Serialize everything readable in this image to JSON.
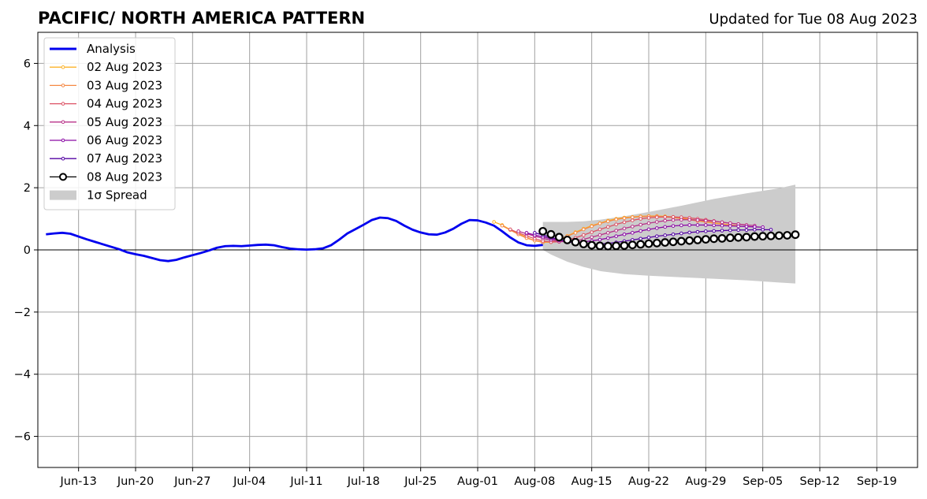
{
  "chart_data": {
    "type": "line",
    "title": "PACIFIC/ NORTH AMERICA PATTERN",
    "subtitle": "Updated for Tue 08 Aug 2023",
    "xlabel": "",
    "ylabel": "",
    "xlim": [
      "2023-06-08",
      "2023-09-24"
    ],
    "ylim": [
      -7,
      7
    ],
    "grid": true,
    "legend_position": "top-left",
    "x_ticks": [
      "2023-06-13",
      "2023-06-20",
      "2023-06-27",
      "2023-07-04",
      "2023-07-11",
      "2023-07-18",
      "2023-07-25",
      "2023-08-01",
      "2023-08-08",
      "2023-08-15",
      "2023-08-22",
      "2023-08-29",
      "2023-09-05",
      "2023-09-12",
      "2023-09-19"
    ],
    "x_tick_labels": [
      "Jun-13",
      "Jun-20",
      "Jun-27",
      "Jul-04",
      "Jul-11",
      "Jul-18",
      "Jul-25",
      "Aug-01",
      "Aug-08",
      "Aug-15",
      "Aug-22",
      "Aug-29",
      "Sep-05",
      "Sep-12",
      "Sep-19"
    ],
    "y_ticks": [
      -6,
      -4,
      -2,
      0,
      2,
      4,
      6
    ],
    "y_tick_labels": [
      "−6",
      "−4",
      "−2",
      "0",
      "2",
      "4",
      "6"
    ],
    "analysis": {
      "name": "Analysis",
      "color": "#0000ee",
      "points": [
        [
          "2023-06-09",
          0.5
        ],
        [
          "2023-06-10",
          0.53
        ],
        [
          "2023-06-11",
          0.55
        ],
        [
          "2023-06-12",
          0.52
        ],
        [
          "2023-06-13",
          0.43
        ],
        [
          "2023-06-14",
          0.34
        ],
        [
          "2023-06-15",
          0.26
        ],
        [
          "2023-06-16",
          0.18
        ],
        [
          "2023-06-17",
          0.1
        ],
        [
          "2023-06-18",
          0.02
        ],
        [
          "2023-06-19",
          -0.08
        ],
        [
          "2023-06-20",
          -0.14
        ],
        [
          "2023-06-21",
          -0.19
        ],
        [
          "2023-06-22",
          -0.26
        ],
        [
          "2023-06-23",
          -0.33
        ],
        [
          "2023-06-24",
          -0.36
        ],
        [
          "2023-06-25",
          -0.32
        ],
        [
          "2023-06-26",
          -0.24
        ],
        [
          "2023-06-27",
          -0.17
        ],
        [
          "2023-06-28",
          -0.1
        ],
        [
          "2023-06-29",
          -0.02
        ],
        [
          "2023-06-30",
          0.07
        ],
        [
          "2023-07-01",
          0.12
        ],
        [
          "2023-07-02",
          0.13
        ],
        [
          "2023-07-03",
          0.12
        ],
        [
          "2023-07-04",
          0.14
        ],
        [
          "2023-07-05",
          0.16
        ],
        [
          "2023-07-06",
          0.17
        ],
        [
          "2023-07-07",
          0.15
        ],
        [
          "2023-07-08",
          0.09
        ],
        [
          "2023-07-09",
          0.04
        ],
        [
          "2023-07-10",
          0.02
        ],
        [
          "2023-07-11",
          0.01
        ],
        [
          "2023-07-12",
          0.02
        ],
        [
          "2023-07-13",
          0.05
        ],
        [
          "2023-07-14",
          0.15
        ],
        [
          "2023-07-15",
          0.33
        ],
        [
          "2023-07-16",
          0.53
        ],
        [
          "2023-07-17",
          0.67
        ],
        [
          "2023-07-18",
          0.81
        ],
        [
          "2023-07-19",
          0.96
        ],
        [
          "2023-07-20",
          1.04
        ],
        [
          "2023-07-21",
          1.02
        ],
        [
          "2023-07-22",
          0.93
        ],
        [
          "2023-07-23",
          0.78
        ],
        [
          "2023-07-24",
          0.65
        ],
        [
          "2023-07-25",
          0.56
        ],
        [
          "2023-07-26",
          0.5
        ],
        [
          "2023-07-27",
          0.49
        ],
        [
          "2023-07-28",
          0.56
        ],
        [
          "2023-07-29",
          0.68
        ],
        [
          "2023-07-30",
          0.84
        ],
        [
          "2023-07-31",
          0.96
        ],
        [
          "2023-08-01",
          0.95
        ],
        [
          "2023-08-02",
          0.88
        ],
        [
          "2023-08-03",
          0.78
        ],
        [
          "2023-08-04",
          0.6
        ],
        [
          "2023-08-05",
          0.4
        ],
        [
          "2023-08-06",
          0.24
        ],
        [
          "2023-08-07",
          0.15
        ],
        [
          "2023-08-08",
          0.13
        ],
        [
          "2023-08-09",
          0.16
        ]
      ]
    },
    "spread": {
      "name": "1σ Spread",
      "color": "#cccccc",
      "x": [
        "2023-08-09",
        "2023-08-10",
        "2023-08-12",
        "2023-08-14",
        "2023-08-16",
        "2023-08-19",
        "2023-08-22",
        "2023-08-26",
        "2023-08-30",
        "2023-09-03",
        "2023-09-07",
        "2023-09-09"
      ],
      "upper": [
        0.9,
        0.9,
        0.9,
        0.92,
        0.97,
        1.08,
        1.22,
        1.42,
        1.64,
        1.82,
        1.98,
        2.1
      ],
      "lower": [
        0.0,
        -0.15,
        -0.38,
        -0.55,
        -0.68,
        -0.78,
        -0.83,
        -0.88,
        -0.93,
        -0.98,
        -1.05,
        -1.08
      ]
    },
    "series": [
      {
        "name": "02 Aug 2023",
        "color": "#fcb32a",
        "start": "2023-08-03",
        "values": [
          0.9,
          0.8,
          0.65,
          0.52,
          0.4,
          0.3,
          0.24,
          0.25,
          0.33,
          0.45,
          0.57,
          0.68,
          0.78,
          0.86,
          0.94,
          1.0,
          1.04,
          1.06,
          1.08,
          1.09,
          1.09,
          1.08,
          1.06,
          1.03,
          0.99,
          0.95,
          0.91,
          0.87,
          0.84,
          0.8
        ]
      },
      {
        "name": "03 Aug 2023",
        "color": "#f58843",
        "start": "2023-08-04",
        "values": [
          0.78,
          0.64,
          0.5,
          0.38,
          0.3,
          0.25,
          0.27,
          0.34,
          0.44,
          0.55,
          0.66,
          0.76,
          0.85,
          0.92,
          0.98,
          1.02,
          1.05,
          1.07,
          1.08,
          1.08,
          1.06,
          1.04,
          1.01,
          0.97,
          0.93,
          0.9,
          0.86,
          0.83,
          0.8,
          0.78
        ]
      },
      {
        "name": "04 Aug 2023",
        "color": "#dc5164",
        "start": "2023-08-05",
        "values": [
          0.66,
          0.55,
          0.45,
          0.36,
          0.29,
          0.25,
          0.26,
          0.31,
          0.39,
          0.48,
          0.57,
          0.66,
          0.74,
          0.82,
          0.89,
          0.95,
          1.0,
          1.03,
          1.05,
          1.06,
          1.06,
          1.05,
          1.03,
          1.0,
          0.97,
          0.93,
          0.89,
          0.86,
          0.83,
          0.8
        ]
      },
      {
        "name": "05 Aug 2023",
        "color": "#b83289",
        "start": "2023-08-06",
        "values": [
          0.6,
          0.52,
          0.44,
          0.37,
          0.31,
          0.27,
          0.26,
          0.29,
          0.34,
          0.41,
          0.48,
          0.55,
          0.62,
          0.69,
          0.75,
          0.81,
          0.86,
          0.9,
          0.94,
          0.96,
          0.97,
          0.97,
          0.96,
          0.94,
          0.92,
          0.89,
          0.86,
          0.83,
          0.8,
          0.78
        ]
      },
      {
        "name": "06 Aug 2023",
        "color": "#8b0aa5",
        "start": "2023-08-07",
        "values": [
          0.55,
          0.48,
          0.42,
          0.36,
          0.31,
          0.27,
          0.25,
          0.26,
          0.29,
          0.33,
          0.38,
          0.44,
          0.5,
          0.55,
          0.61,
          0.66,
          0.7,
          0.74,
          0.77,
          0.79,
          0.8,
          0.8,
          0.8,
          0.79,
          0.78,
          0.77,
          0.76,
          0.75,
          0.74,
          0.73
        ]
      },
      {
        "name": "07 Aug 2023",
        "color": "#5302a3",
        "start": "2023-08-08",
        "values": [
          0.55,
          0.48,
          0.4,
          0.33,
          0.27,
          0.22,
          0.19,
          0.18,
          0.19,
          0.21,
          0.24,
          0.28,
          0.32,
          0.36,
          0.4,
          0.44,
          0.47,
          0.5,
          0.53,
          0.56,
          0.58,
          0.6,
          0.61,
          0.62,
          0.63,
          0.64,
          0.64,
          0.65,
          0.65,
          0.65
        ]
      },
      {
        "name": "08 Aug 2023",
        "color": "#000000",
        "marker_fill": "#ffffff",
        "start": "2023-08-09",
        "values": [
          0.6,
          0.5,
          0.41,
          0.32,
          0.25,
          0.19,
          0.15,
          0.13,
          0.12,
          0.13,
          0.14,
          0.16,
          0.18,
          0.2,
          0.22,
          0.24,
          0.26,
          0.28,
          0.3,
          0.32,
          0.34,
          0.36,
          0.37,
          0.39,
          0.4,
          0.41,
          0.43,
          0.44,
          0.45,
          0.46,
          0.47,
          0.49
        ]
      }
    ]
  }
}
